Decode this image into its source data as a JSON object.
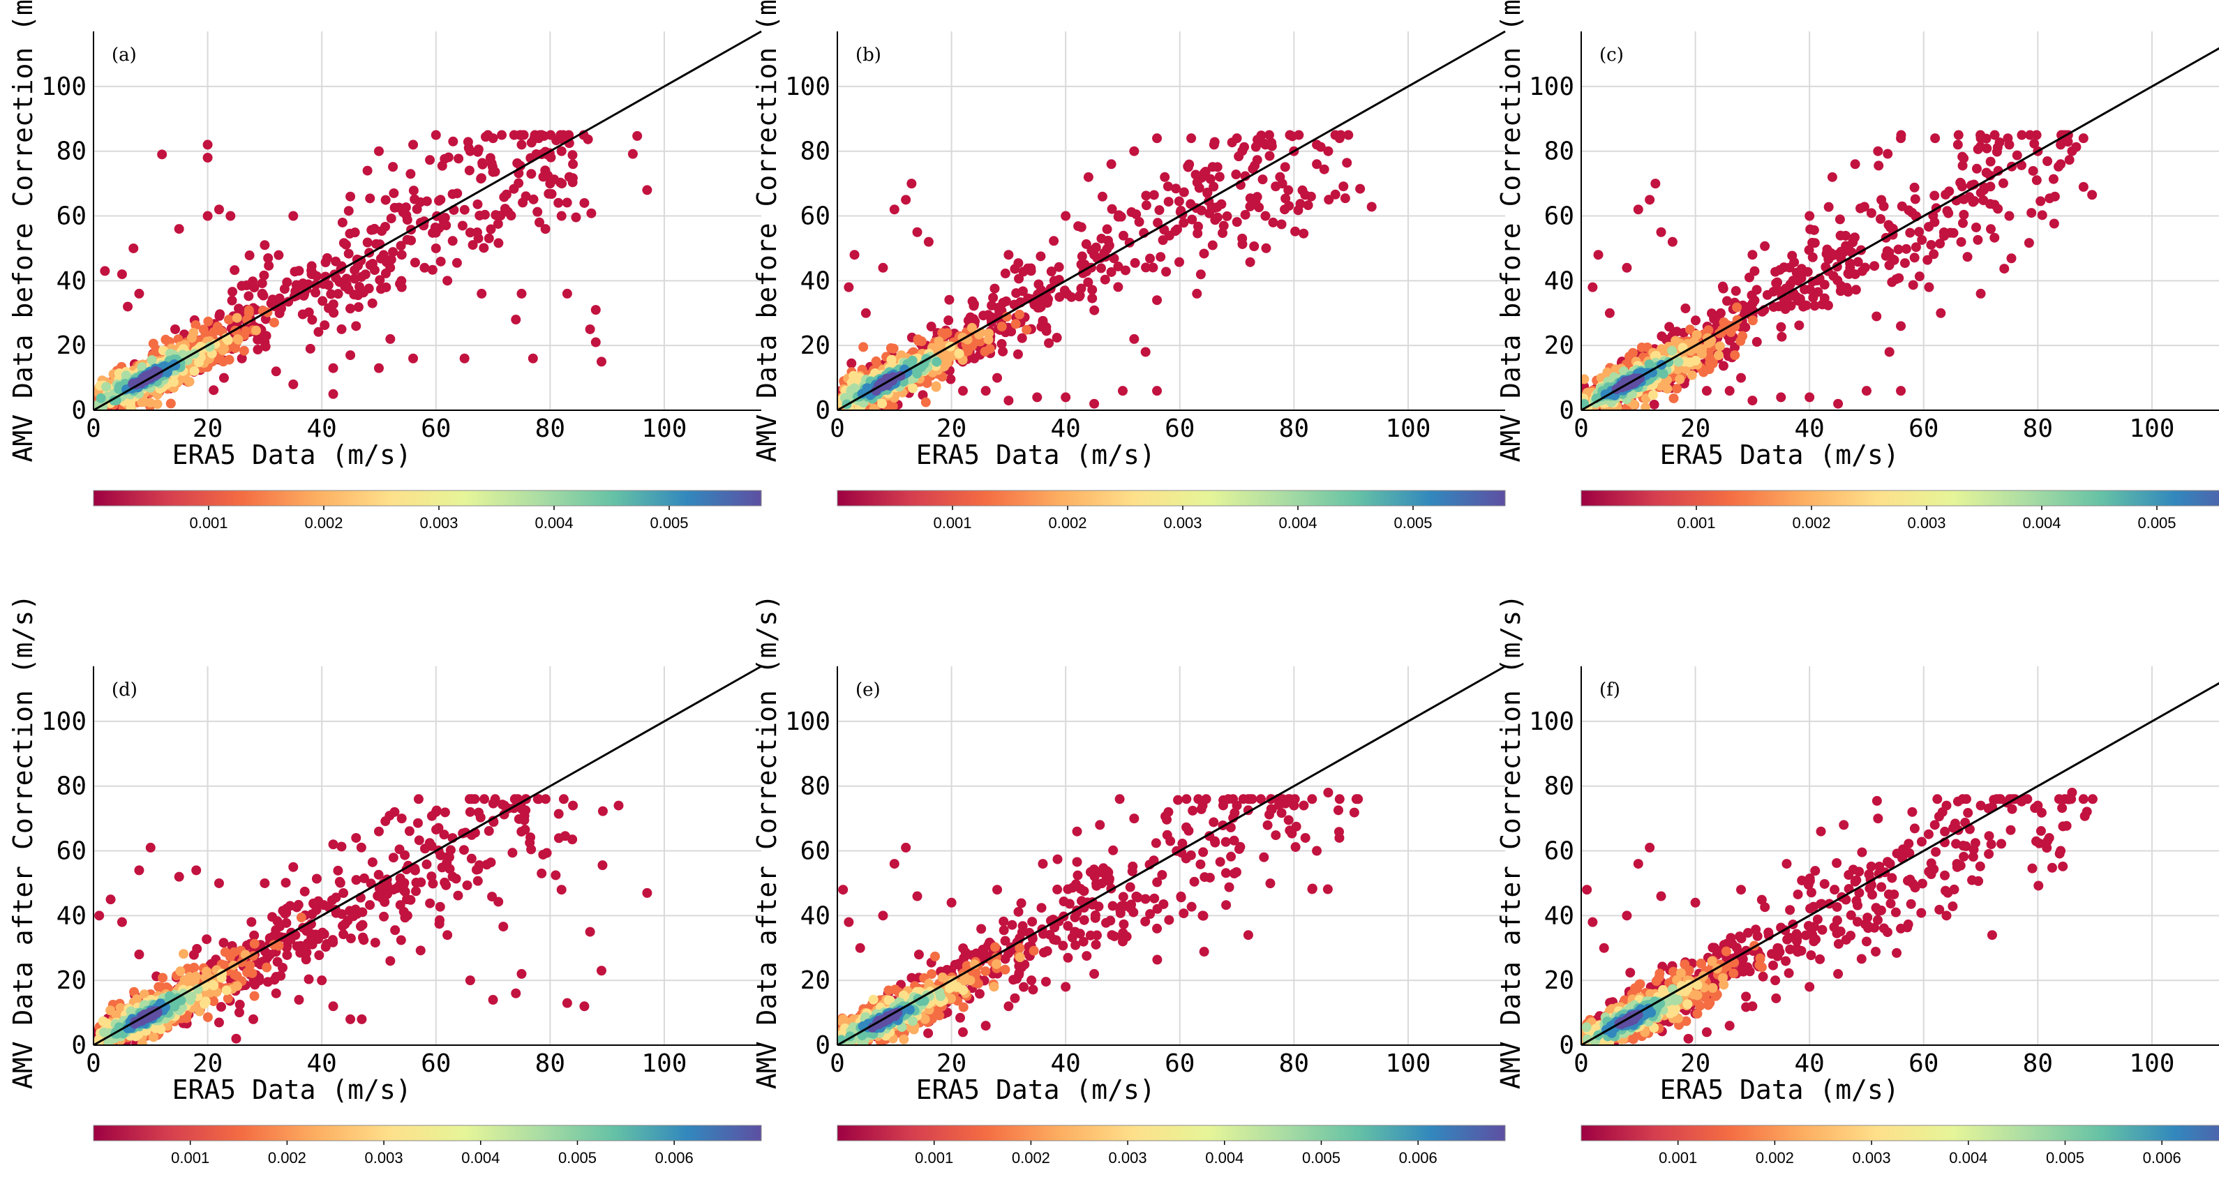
{
  "chart_data": [
    {
      "type": "scatter",
      "panel_label": "(a)",
      "xlabel": "ERA5 Data (m/s)",
      "ylabel": "AMV Data before Correction (m/s)",
      "xlim": [
        0,
        117
      ],
      "ylim": [
        0,
        117
      ],
      "xticks": [
        0,
        20,
        40,
        60,
        80,
        100
      ],
      "yticks": [
        0,
        20,
        40,
        60,
        80,
        100
      ],
      "grid": true,
      "reference_line": {
        "x": [
          0,
          117
        ],
        "y": [
          0,
          117
        ]
      },
      "density_core": {
        "x": [
          3,
          16
        ],
        "y": [
          4,
          16
        ]
      },
      "outliers": [
        [
          12,
          79
        ],
        [
          20,
          82
        ],
        [
          20,
          78
        ],
        [
          22,
          62
        ],
        [
          20,
          60
        ],
        [
          24,
          60
        ],
        [
          8,
          36
        ],
        [
          5,
          42
        ],
        [
          7,
          50
        ],
        [
          2,
          43
        ],
        [
          15,
          56
        ],
        [
          6,
          32
        ],
        [
          30,
          51
        ],
        [
          35,
          60
        ],
        [
          45,
          66
        ],
        [
          48,
          74
        ],
        [
          50,
          80
        ],
        [
          56,
          82
        ],
        [
          60,
          85
        ],
        [
          63,
          83
        ],
        [
          66,
          80
        ],
        [
          70,
          84
        ],
        [
          75,
          82
        ],
        [
          78,
          84
        ],
        [
          82,
          80
        ],
        [
          84,
          76
        ],
        [
          80,
          70
        ],
        [
          82,
          60
        ],
        [
          86,
          64
        ],
        [
          97,
          68
        ],
        [
          88,
          31
        ],
        [
          87,
          25
        ],
        [
          88,
          21
        ],
        [
          89,
          15
        ],
        [
          77,
          16
        ],
        [
          74,
          28
        ],
        [
          75,
          36
        ],
        [
          83,
          36
        ],
        [
          68,
          36
        ],
        [
          65,
          16
        ],
        [
          56,
          16
        ],
        [
          50,
          13
        ],
        [
          52,
          22
        ],
        [
          46,
          26
        ],
        [
          38,
          19
        ],
        [
          42,
          13
        ],
        [
          32,
          12
        ],
        [
          26,
          16
        ],
        [
          30,
          21
        ],
        [
          60,
          50
        ],
        [
          58,
          44
        ],
        [
          62,
          40
        ],
        [
          54,
          38
        ],
        [
          54,
          48
        ],
        [
          35,
          8
        ],
        [
          42,
          5
        ],
        [
          45,
          17
        ]
      ]
    },
    {
      "type": "scatter",
      "panel_label": "(b)",
      "xlabel": "ERA5 Data (m/s)",
      "ylabel": "AMV Data before Correction (m/s)",
      "xlim": [
        0,
        117
      ],
      "ylim": [
        0,
        117
      ],
      "xticks": [
        0,
        20,
        40,
        60,
        80,
        100
      ],
      "yticks": [
        0,
        20,
        40,
        60,
        80,
        100
      ],
      "grid": true,
      "reference_line": {
        "x": [
          0,
          117
        ],
        "y": [
          0,
          117
        ]
      },
      "density_core": {
        "x": [
          2,
          15
        ],
        "y": [
          3,
          14
        ]
      },
      "outliers": [
        [
          13,
          70
        ],
        [
          12,
          65
        ],
        [
          10,
          62
        ],
        [
          3,
          48
        ],
        [
          2,
          38
        ],
        [
          5,
          30
        ],
        [
          14,
          55
        ],
        [
          16,
          52
        ],
        [
          8,
          44
        ],
        [
          44,
          72
        ],
        [
          48,
          76
        ],
        [
          52,
          80
        ],
        [
          56,
          84
        ],
        [
          62,
          84
        ],
        [
          66,
          82
        ],
        [
          70,
          84
        ],
        [
          75,
          82
        ],
        [
          80,
          80
        ],
        [
          84,
          82
        ],
        [
          86,
          80
        ],
        [
          88,
          84
        ],
        [
          84,
          76
        ],
        [
          83,
          66
        ],
        [
          75,
          60
        ],
        [
          63,
          36
        ],
        [
          56,
          34
        ],
        [
          52,
          22
        ],
        [
          54,
          18
        ],
        [
          56,
          6
        ],
        [
          50,
          6
        ],
        [
          45,
          2
        ],
        [
          40,
          4
        ],
        [
          35,
          4
        ],
        [
          30,
          3
        ],
        [
          26,
          6
        ],
        [
          28,
          10
        ],
        [
          22,
          6
        ],
        [
          24,
          16
        ],
        [
          38,
          40
        ],
        [
          45,
          48
        ],
        [
          30,
          48
        ],
        [
          40,
          60
        ]
      ]
    },
    {
      "type": "scatter",
      "panel_label": "(c)",
      "xlabel": "ERA5 Data (m/s)",
      "ylabel": "AMV Data before Correction (m/s)",
      "xlim": [
        0,
        117
      ],
      "ylim": [
        0,
        117
      ],
      "xticks": [
        0,
        20,
        40,
        60,
        80,
        100
      ],
      "yticks": [
        0,
        20,
        40,
        60,
        80,
        100
      ],
      "grid": true,
      "reference_line": {
        "x": [
          0,
          117
        ],
        "y": [
          0,
          117
        ]
      },
      "density_core": {
        "x": [
          2,
          15
        ],
        "y": [
          3,
          14
        ]
      },
      "outliers": [
        [
          13,
          70
        ],
        [
          12,
          65
        ],
        [
          10,
          62
        ],
        [
          3,
          48
        ],
        [
          2,
          38
        ],
        [
          5,
          30
        ],
        [
          14,
          55
        ],
        [
          16,
          52
        ],
        [
          8,
          44
        ],
        [
          44,
          72
        ],
        [
          48,
          76
        ],
        [
          52,
          80
        ],
        [
          56,
          84
        ],
        [
          62,
          84
        ],
        [
          66,
          82
        ],
        [
          70,
          84
        ],
        [
          75,
          82
        ],
        [
          80,
          80
        ],
        [
          84,
          82
        ],
        [
          86,
          80
        ],
        [
          88,
          84
        ],
        [
          84,
          76
        ],
        [
          83,
          66
        ],
        [
          75,
          60
        ],
        [
          70,
          36
        ],
        [
          63,
          30
        ],
        [
          56,
          26
        ],
        [
          54,
          18
        ],
        [
          56,
          6
        ],
        [
          50,
          6
        ],
        [
          45,
          2
        ],
        [
          40,
          4
        ],
        [
          35,
          4
        ],
        [
          30,
          3
        ],
        [
          26,
          6
        ],
        [
          28,
          10
        ],
        [
          22,
          6
        ],
        [
          24,
          16
        ],
        [
          38,
          40
        ],
        [
          45,
          48
        ],
        [
          30,
          48
        ],
        [
          40,
          60
        ]
      ]
    },
    {
      "type": "scatter",
      "panel_label": "(d)",
      "xlabel": "ERA5 Data (m/s)",
      "ylabel": "AMV Data after Correction (m/s)",
      "xlim": [
        0,
        117
      ],
      "ylim": [
        0,
        117
      ],
      "xticks": [
        0,
        20,
        40,
        60,
        80,
        100
      ],
      "yticks": [
        0,
        20,
        40,
        60,
        80,
        100
      ],
      "grid": true,
      "reference_line": {
        "x": [
          0,
          117
        ],
        "y": [
          0,
          117
        ]
      },
      "density_core": {
        "x": [
          3,
          16
        ],
        "y": [
          3,
          15
        ]
      },
      "outliers": [
        [
          10,
          61
        ],
        [
          8,
          54
        ],
        [
          3,
          45
        ],
        [
          1,
          40
        ],
        [
          5,
          38
        ],
        [
          8,
          28
        ],
        [
          15,
          52
        ],
        [
          18,
          54
        ],
        [
          22,
          50
        ],
        [
          30,
          50
        ],
        [
          35,
          55
        ],
        [
          42,
          62
        ],
        [
          46,
          64
        ],
        [
          50,
          66
        ],
        [
          54,
          70
        ],
        [
          60,
          72
        ],
        [
          66,
          72
        ],
        [
          72,
          74
        ],
        [
          78,
          76
        ],
        [
          84,
          74
        ],
        [
          92,
          74
        ],
        [
          97,
          47
        ],
        [
          89,
          23
        ],
        [
          86,
          12
        ],
        [
          83,
          13
        ],
        [
          87,
          35
        ],
        [
          82,
          48
        ],
        [
          75,
          22
        ],
        [
          74,
          16
        ],
        [
          70,
          14
        ],
        [
          66,
          20
        ],
        [
          62,
          34
        ],
        [
          55,
          40
        ],
        [
          52,
          26
        ],
        [
          47,
          8
        ],
        [
          45,
          8
        ],
        [
          42,
          12
        ],
        [
          36,
          14
        ],
        [
          40,
          20
        ],
        [
          32,
          16
        ],
        [
          25,
          2
        ],
        [
          22,
          7
        ],
        [
          28,
          8
        ]
      ]
    },
    {
      "type": "scatter",
      "panel_label": "(e)",
      "xlabel": "ERA5 Data (m/s)",
      "ylabel": "AMV Data after Correction (m/s)",
      "xlim": [
        0,
        117
      ],
      "ylim": [
        0,
        117
      ],
      "xticks": [
        0,
        20,
        40,
        60,
        80,
        100
      ],
      "yticks": [
        0,
        20,
        40,
        60,
        80,
        100
      ],
      "grid": true,
      "reference_line": {
        "x": [
          0,
          117
        ],
        "y": [
          0,
          117
        ]
      },
      "density_core": {
        "x": [
          2,
          15
        ],
        "y": [
          3,
          13
        ]
      },
      "outliers": [
        [
          12,
          61
        ],
        [
          10,
          56
        ],
        [
          1,
          48
        ],
        [
          2,
          38
        ],
        [
          4,
          30
        ],
        [
          8,
          40
        ],
        [
          14,
          46
        ],
        [
          20,
          44
        ],
        [
          28,
          48
        ],
        [
          36,
          56
        ],
        [
          42,
          66
        ],
        [
          46,
          68
        ],
        [
          52,
          70
        ],
        [
          58,
          72
        ],
        [
          64,
          74
        ],
        [
          70,
          74
        ],
        [
          76,
          76
        ],
        [
          80,
          74
        ],
        [
          86,
          78
        ],
        [
          88,
          76
        ],
        [
          82,
          64
        ],
        [
          84,
          60
        ],
        [
          72,
          34
        ],
        [
          64,
          40
        ],
        [
          56,
          36
        ],
        [
          50,
          32
        ],
        [
          45,
          22
        ],
        [
          40,
          18
        ],
        [
          34,
          20
        ],
        [
          30,
          12
        ],
        [
          26,
          6
        ],
        [
          22,
          4
        ]
      ]
    },
    {
      "type": "scatter",
      "panel_label": "(f)",
      "xlabel": "ERA5 Data (m/s)",
      "ylabel": "AMV Data after Correction (m/s)",
      "xlim": [
        0,
        117
      ],
      "ylim": [
        0,
        117
      ],
      "xticks": [
        0,
        20,
        40,
        60,
        80,
        100
      ],
      "yticks": [
        0,
        20,
        40,
        60,
        80,
        100
      ],
      "grid": true,
      "reference_line": {
        "x": [
          0,
          117
        ],
        "y": [
          0,
          117
        ]
      },
      "density_core": {
        "x": [
          2,
          15
        ],
        "y": [
          3,
          13
        ]
      },
      "outliers": [
        [
          12,
          61
        ],
        [
          10,
          56
        ],
        [
          1,
          48
        ],
        [
          2,
          38
        ],
        [
          4,
          30
        ],
        [
          8,
          40
        ],
        [
          14,
          46
        ],
        [
          20,
          44
        ],
        [
          28,
          48
        ],
        [
          36,
          56
        ],
        [
          42,
          66
        ],
        [
          46,
          68
        ],
        [
          52,
          70
        ],
        [
          58,
          72
        ],
        [
          64,
          74
        ],
        [
          70,
          74
        ],
        [
          76,
          76
        ],
        [
          80,
          74
        ],
        [
          86,
          78
        ],
        [
          88,
          76
        ],
        [
          82,
          64
        ],
        [
          84,
          60
        ],
        [
          72,
          34
        ],
        [
          64,
          40
        ],
        [
          56,
          36
        ],
        [
          50,
          32
        ],
        [
          45,
          22
        ],
        [
          40,
          18
        ],
        [
          34,
          20
        ],
        [
          30,
          12
        ],
        [
          26,
          6
        ],
        [
          22,
          4
        ]
      ]
    }
  ],
  "colorbars": [
    {
      "ticks": [
        "0.001",
        "0.002",
        "0.003",
        "0.004",
        "0.005"
      ],
      "tick_values": [
        0.001,
        0.002,
        0.003,
        0.004,
        0.005
      ],
      "range": [
        0,
        0.0058
      ]
    },
    {
      "ticks": [
        "0.001",
        "0.002",
        "0.003",
        "0.004",
        "0.005"
      ],
      "tick_values": [
        0.001,
        0.002,
        0.003,
        0.004,
        0.005
      ],
      "range": [
        0,
        0.0058
      ]
    },
    {
      "ticks": [
        "0.001",
        "0.002",
        "0.003",
        "0.004",
        "0.005"
      ],
      "tick_values": [
        0.001,
        0.002,
        0.003,
        0.004,
        0.005
      ],
      "range": [
        0,
        0.0058
      ]
    },
    {
      "ticks": [
        "0.001",
        "0.002",
        "0.003",
        "0.004",
        "0.005",
        "0.006"
      ],
      "tick_values": [
        0.001,
        0.002,
        0.003,
        0.004,
        0.005,
        0.006
      ],
      "range": [
        0,
        0.0069
      ]
    },
    {
      "ticks": [
        "0.001",
        "0.002",
        "0.003",
        "0.004",
        "0.005",
        "0.006"
      ],
      "tick_values": [
        0.001,
        0.002,
        0.003,
        0.004,
        0.005,
        0.006
      ],
      "range": [
        0,
        0.0069
      ]
    },
    {
      "ticks": [
        "0.001",
        "0.002",
        "0.003",
        "0.004",
        "0.005",
        "0.006"
      ],
      "tick_values": [
        0.001,
        0.002,
        0.003,
        0.004,
        0.005,
        0.006
      ],
      "range": [
        0,
        0.0069
      ]
    }
  ],
  "colormap": [
    "#9e0142",
    "#d53e4f",
    "#f46d43",
    "#fdae61",
    "#fee08b",
    "#e6f598",
    "#abdda4",
    "#66c2a5",
    "#3288bd",
    "#5e4fa2"
  ],
  "point_color": "#c2123f",
  "reference_line_color": "#000000"
}
